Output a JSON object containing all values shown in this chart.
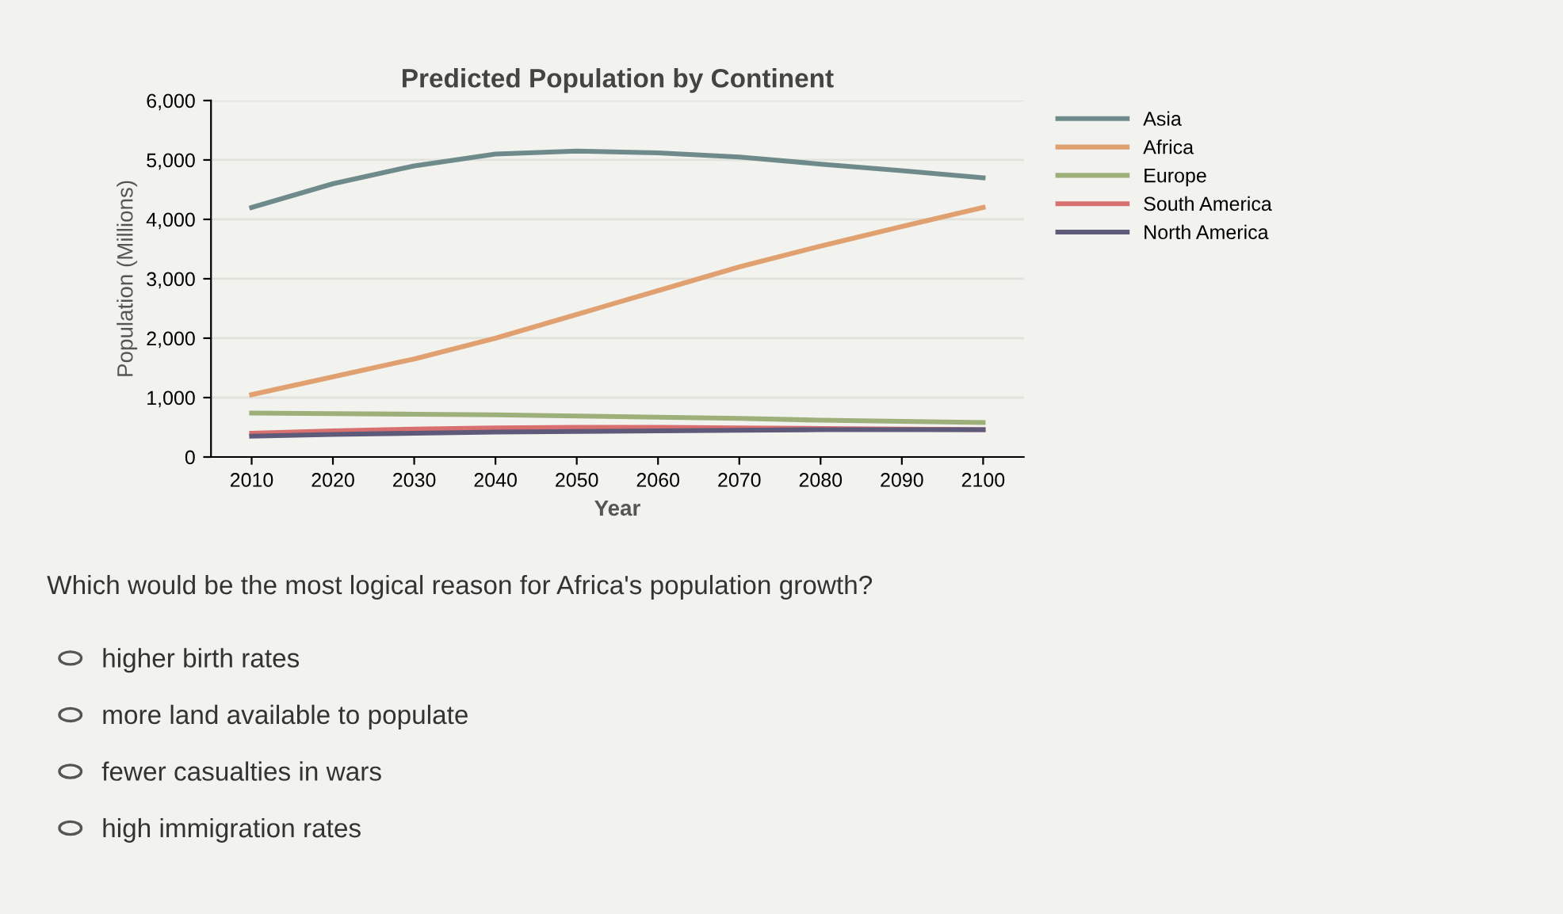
{
  "chart_data": {
    "type": "line",
    "title": "Predicted Population by Continent",
    "xlabel": "Year",
    "ylabel": "Population (Millions)",
    "x": [
      2010,
      2020,
      2030,
      2040,
      2050,
      2060,
      2070,
      2080,
      2090,
      2100
    ],
    "series": [
      {
        "name": "Asia",
        "color": "#6f8a8a",
        "values": [
          4200,
          4600,
          4900,
          5100,
          5150,
          5120,
          5050,
          4930,
          4820,
          4700
        ]
      },
      {
        "name": "Africa",
        "color": "#e0a070",
        "values": [
          1050,
          1350,
          1650,
          2000,
          2400,
          2800,
          3200,
          3550,
          3880,
          4200
        ]
      },
      {
        "name": "Europe",
        "color": "#9db07a",
        "values": [
          740,
          730,
          720,
          710,
          690,
          670,
          650,
          620,
          600,
          580
        ]
      },
      {
        "name": "South America",
        "color": "#d97070",
        "values": [
          400,
          440,
          470,
          490,
          500,
          500,
          490,
          480,
          470,
          460
        ]
      },
      {
        "name": "North America",
        "color": "#5e5a7a",
        "values": [
          350,
          380,
          400,
          420,
          430,
          440,
          450,
          460,
          460,
          460
        ]
      }
    ],
    "xlim": [
      2005,
      2105
    ],
    "xticks": [
      2010,
      2020,
      2030,
      2040,
      2050,
      2060,
      2070,
      2080,
      2090,
      2100
    ],
    "ylim": [
      0,
      6000
    ],
    "yticks": [
      {
        "value": 0,
        "label": "0"
      },
      {
        "value": 1000,
        "label": "1,000"
      },
      {
        "value": 2000,
        "label": "2,000"
      },
      {
        "value": 3000,
        "label": "3,000"
      },
      {
        "value": 4000,
        "label": "4,000"
      },
      {
        "value": 5000,
        "label": "5,000"
      },
      {
        "value": 6000,
        "label": "6,000"
      }
    ],
    "grid": "y",
    "legend": "right",
    "marker": "none",
    "line_style": "solid",
    "annotations": [
      "Which would be the most logical reason for Africa's population growth?",
      "higher birth rates",
      "more land available to populate",
      "fewer casualties in wars",
      "high immigration rates"
    ]
  }
}
